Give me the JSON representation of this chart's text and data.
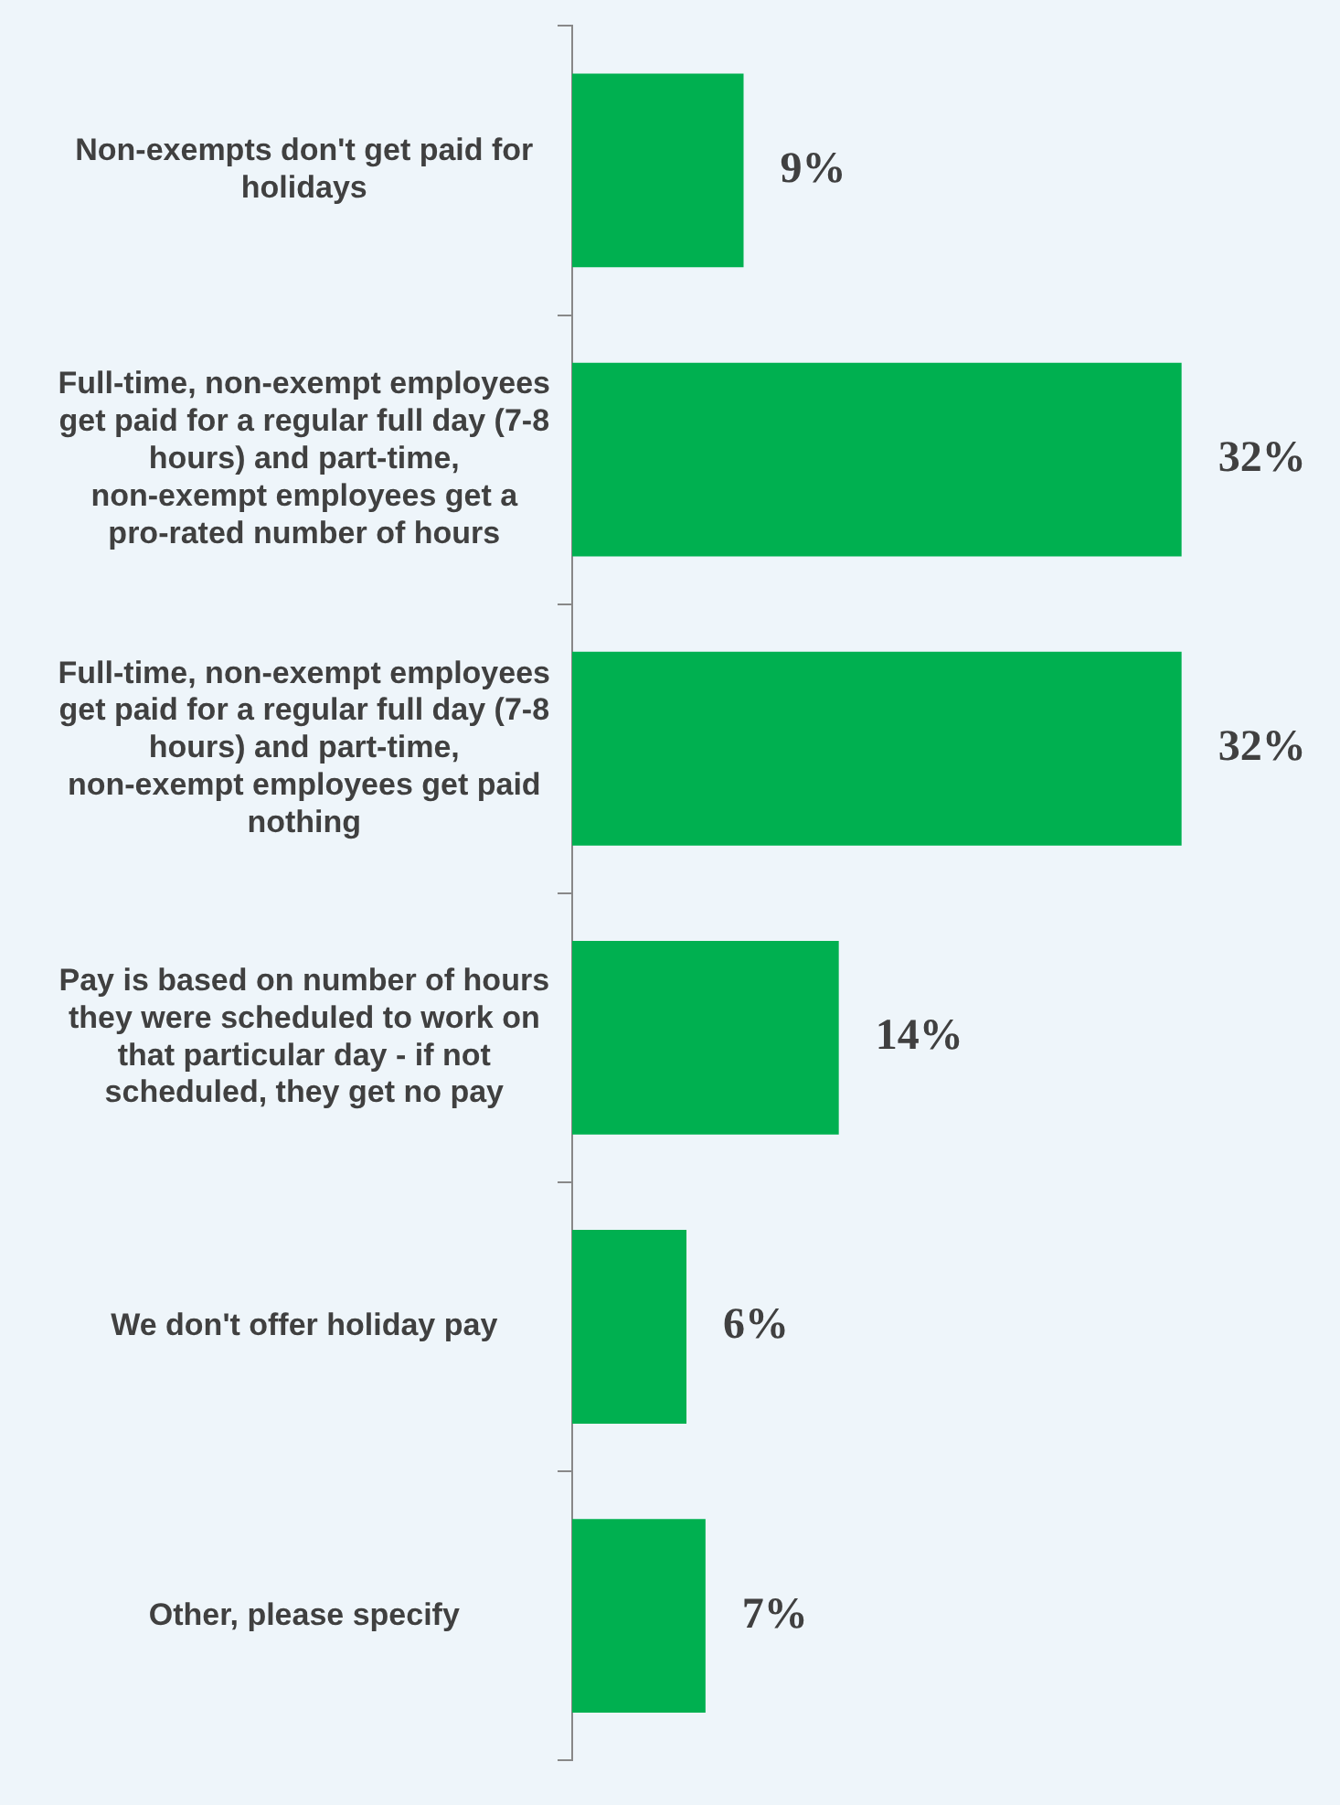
{
  "chart_data": {
    "type": "bar",
    "orientation": "horizontal",
    "categories": [
      "Non-exempts don't get paid for holidays",
      "Full-time, non-exempt employees get paid for a regular full day (7-8 hours) and part-time, non-exempt employees get a pro-rated number of hours",
      "Full-time, non-exempt employees get paid for a regular full day (7-8 hours) and part-time, non-exempt employees get paid nothing",
      "Pay is based on number of hours they were scheduled to work on that particular day - if not scheduled, they get no pay",
      "We don't offer holiday pay",
      "Other, please specify"
    ],
    "values": [
      9,
      32,
      32,
      14,
      6,
      7
    ],
    "value_labels": [
      "9%",
      "32%",
      "32%",
      "14%",
      "6%",
      "7%"
    ],
    "color": "#00b050",
    "legend": false
  }
}
